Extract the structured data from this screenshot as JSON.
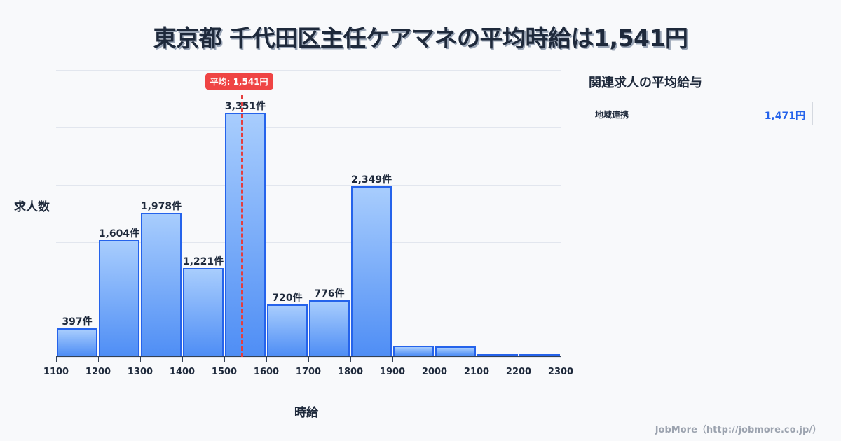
{
  "title": "東京都 千代田区主任ケアマネの平均時給は1,541円",
  "chart_data": {
    "type": "bar",
    "title": "東京都 千代田区主任ケアマネの平均時給は1,541円",
    "xlabel": "時給",
    "ylabel": "求人数",
    "categories": [
      "1100-1200",
      "1200-1300",
      "1300-1400",
      "1400-1500",
      "1500-1600",
      "1600-1700",
      "1700-1800",
      "1800-1900",
      "1900-2000",
      "2000-2100",
      "2100-2200",
      "2200-2300"
    ],
    "bin_edges": [
      1100,
      1200,
      1300,
      1400,
      1500,
      1600,
      1700,
      1800,
      1900,
      2000,
      2100,
      2200,
      2300
    ],
    "values": [
      397,
      1604,
      1978,
      1221,
      3351,
      720,
      776,
      2349,
      154,
      144,
      29,
      29
    ],
    "labels": [
      "397件",
      "1,604件",
      "1,978件",
      "1,221件",
      "3,351件",
      "720件",
      "776件",
      "2,349件",
      "",
      "",
      "",
      ""
    ],
    "x_ticks": [
      "1100",
      "1200",
      "1300",
      "1400",
      "1500",
      "1600",
      "1700",
      "1800",
      "1900",
      "2000",
      "2100",
      "2200",
      "2300"
    ],
    "xlim": [
      1100,
      2300
    ],
    "ylim": [
      0,
      3940
    ],
    "grid": true,
    "average": {
      "value": 1541,
      "label": "平均: 1,541円"
    },
    "colors": {
      "bar_border": "#2563eb",
      "bar_top": "#a8cdfd",
      "bar_bottom": "#4f8ef5",
      "average_line": "#e53e3e"
    }
  },
  "axis": {
    "ylabel": "求人数",
    "xlabel": "時給"
  },
  "sidebar": {
    "title": "関連求人の平均給与",
    "items": [
      {
        "name": "地域連携",
        "value": "1,471円"
      }
    ]
  },
  "footer": "JobMore（http://jobmore.co.jp/）"
}
